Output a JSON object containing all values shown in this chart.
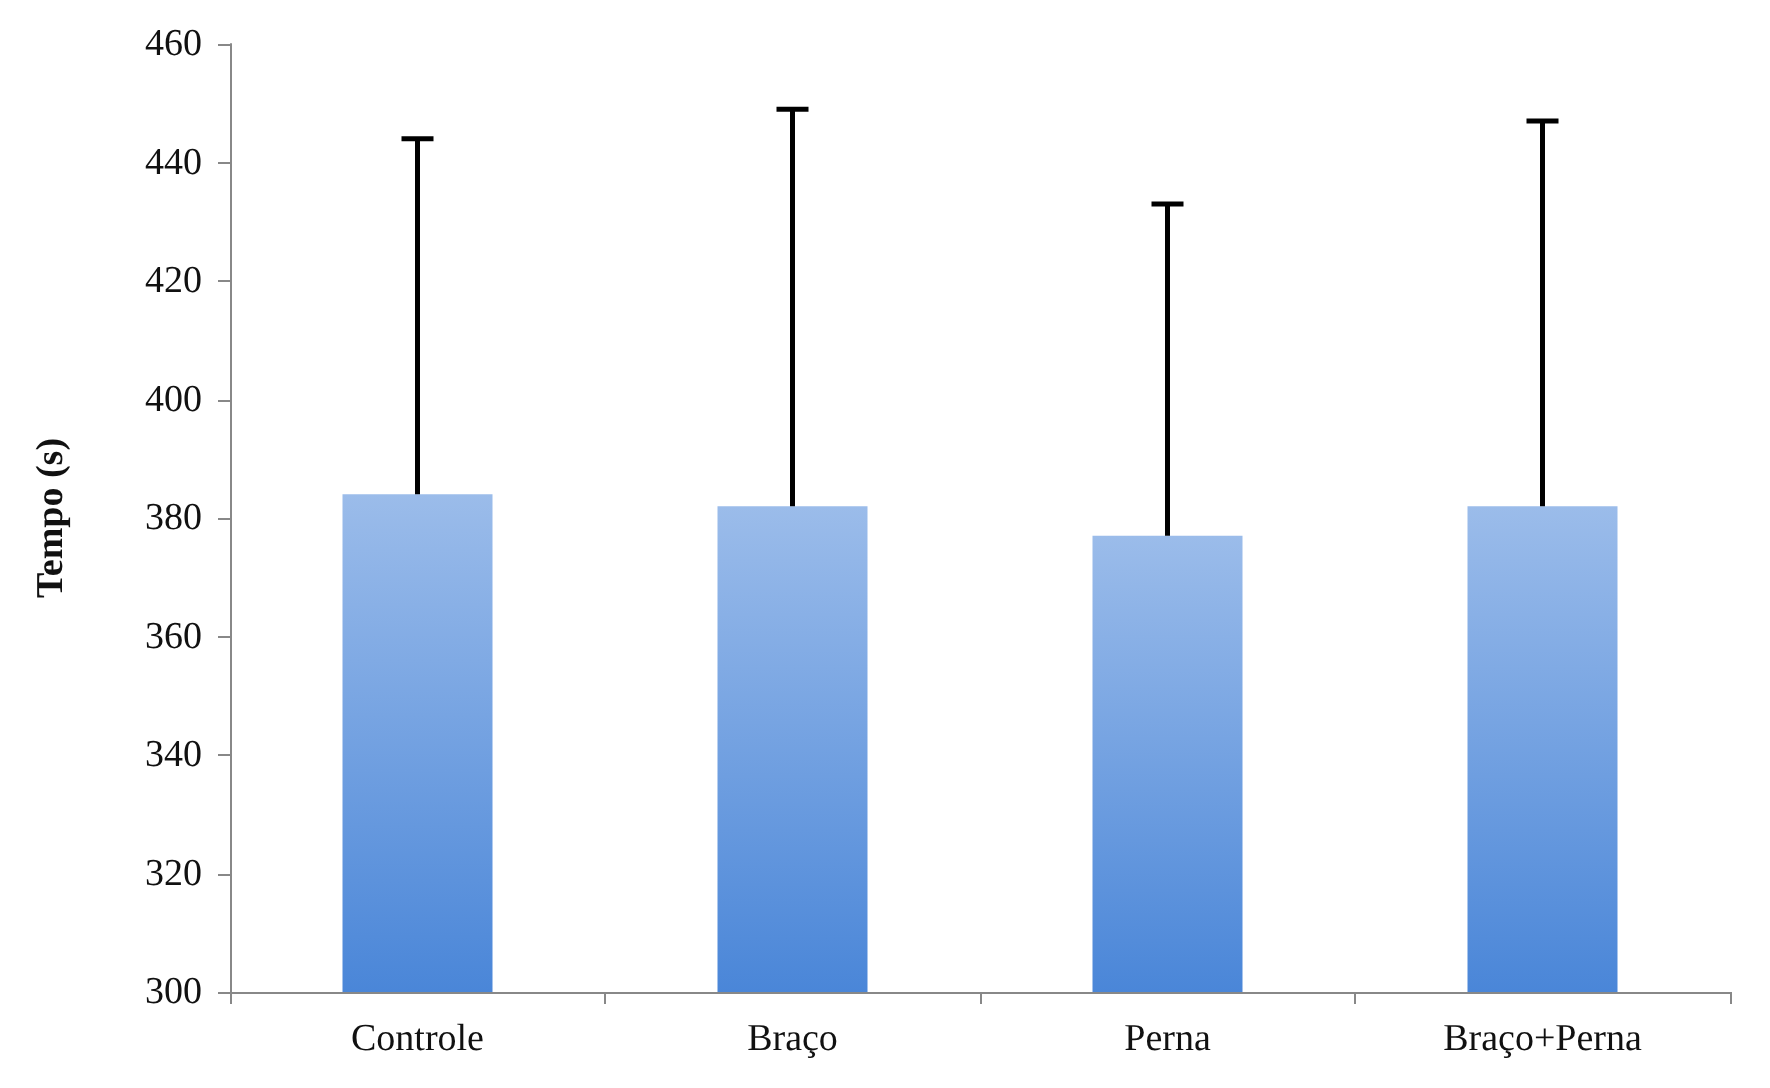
{
  "chart_data": {
    "type": "bar",
    "ylabel": "Tempo (s)",
    "categories": [
      "Controle",
      "Braço",
      "Perna",
      "Braço+Perna"
    ],
    "values": [
      384,
      382,
      377,
      382
    ],
    "errors": [
      [
        384,
        444
      ],
      [
        382,
        449
      ],
      [
        377,
        433
      ],
      [
        382,
        447
      ]
    ],
    "color": "#4a86d8",
    "ylim": [
      300,
      460
    ],
    "yticks": [
      300,
      320,
      340,
      360,
      380,
      400,
      420,
      440,
      460
    ],
    "grid": false
  }
}
